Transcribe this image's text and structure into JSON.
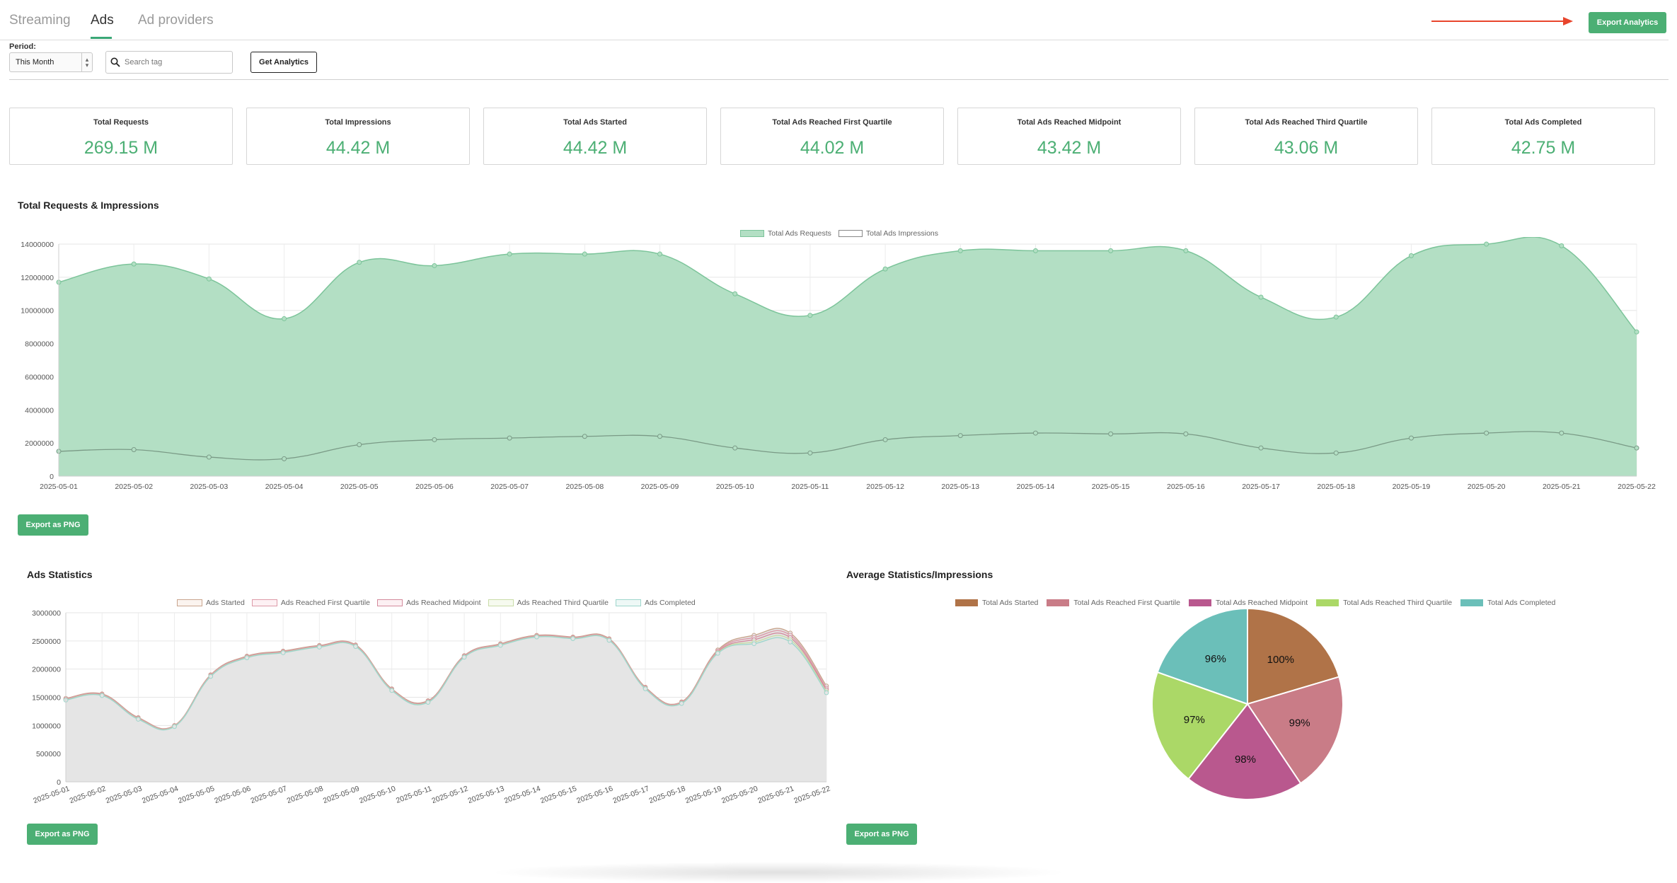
{
  "tabs": [
    {
      "label": "Streaming",
      "active": false
    },
    {
      "label": "Ads",
      "active": true
    },
    {
      "label": "Ad providers",
      "active": false
    }
  ],
  "export_analytics_label": "Export Analytics",
  "filters": {
    "period_label": "Period:",
    "period_value": "This Month",
    "search_placeholder": "Search tag",
    "get_analytics_label": "Get Analytics"
  },
  "stats": [
    {
      "label": "Total Requests",
      "value": "269.15 M"
    },
    {
      "label": "Total Impressions",
      "value": "44.42 M"
    },
    {
      "label": "Total Ads Started",
      "value": "44.42 M"
    },
    {
      "label": "Total Ads Reached First Quartile",
      "value": "44.02 M"
    },
    {
      "label": "Total Ads Reached Midpoint",
      "value": "43.42 M"
    },
    {
      "label": "Total Ads Reached Third Quartile",
      "value": "43.06 M"
    },
    {
      "label": "Total Ads Completed",
      "value": "42.75 M"
    }
  ],
  "colors": {
    "accent": "#4caf74",
    "arrow": "#e8452c"
  },
  "requests_section": {
    "title": "Total Requests & Impressions",
    "export_label": "Export as PNG"
  },
  "ads_section": {
    "title": "Ads Statistics",
    "export_label": "Export as PNG"
  },
  "avg_section": {
    "title": "Average Statistics/Impressions",
    "export_label": "Export as PNG"
  },
  "chart_data": [
    {
      "type": "area",
      "title": "Total Requests & Impressions",
      "x": [
        "2025-05-01",
        "2025-05-02",
        "2025-05-03",
        "2025-05-04",
        "2025-05-05",
        "2025-05-06",
        "2025-05-07",
        "2025-05-08",
        "2025-05-09",
        "2025-05-10",
        "2025-05-11",
        "2025-05-12",
        "2025-05-13",
        "2025-05-14",
        "2025-05-15",
        "2025-05-16",
        "2025-05-17",
        "2025-05-18",
        "2025-05-19",
        "2025-05-20",
        "2025-05-21",
        "2025-05-22"
      ],
      "ylim": [
        0,
        14000000
      ],
      "yticks": [
        0,
        2000000,
        4000000,
        6000000,
        8000000,
        10000000,
        12000000,
        14000000
      ],
      "legend_position": "top",
      "grid": true,
      "series": [
        {
          "name": "Total Ads Requests",
          "color": "#b3dfc4",
          "line": "#7cc49a",
          "values": [
            11700000,
            12800000,
            11900000,
            9500000,
            12900000,
            12700000,
            13400000,
            13400000,
            13400000,
            11000000,
            9700000,
            12500000,
            13600000,
            13600000,
            13600000,
            13600000,
            10800000,
            9600000,
            13300000,
            14000000,
            13900000,
            8700000
          ]
        },
        {
          "name": "Total Ads Impressions",
          "color": "#ffffff",
          "line": "#7a9a86",
          "values": [
            1500000,
            1600000,
            1150000,
            1050000,
            1900000,
            2200000,
            2300000,
            2400000,
            2400000,
            1700000,
            1400000,
            2200000,
            2450000,
            2600000,
            2550000,
            2550000,
            1700000,
            1400000,
            2300000,
            2600000,
            2600000,
            1700000
          ]
        }
      ]
    },
    {
      "type": "area",
      "title": "Ads Statistics",
      "x": [
        "2025-05-01",
        "2025-05-02",
        "2025-05-03",
        "2025-05-04",
        "2025-05-05",
        "2025-05-06",
        "2025-05-07",
        "2025-05-08",
        "2025-05-09",
        "2025-05-10",
        "2025-05-11",
        "2025-05-12",
        "2025-05-13",
        "2025-05-14",
        "2025-05-15",
        "2025-05-16",
        "2025-05-17",
        "2025-05-18",
        "2025-05-19",
        "2025-05-20",
        "2025-05-21",
        "2025-05-22"
      ],
      "ylim": [
        0,
        3000000
      ],
      "yticks": [
        0,
        500000,
        1000000,
        1500000,
        2000000,
        2500000,
        3000000
      ],
      "legend_position": "top",
      "grid": true,
      "series": [
        {
          "name": "Ads Started",
          "color": "#c9a58e",
          "values": [
            1480000,
            1560000,
            1140000,
            1000000,
            1900000,
            2230000,
            2320000,
            2420000,
            2430000,
            1650000,
            1440000,
            2240000,
            2450000,
            2600000,
            2570000,
            2540000,
            1680000,
            1420000,
            2340000,
            2600000,
            2640000,
            1700000
          ]
        },
        {
          "name": "Ads Reached First Quartile",
          "color": "#dd9aa8",
          "values": [
            1470000,
            1550000,
            1130000,
            995000,
            1890000,
            2220000,
            2310000,
            2410000,
            2420000,
            1640000,
            1430000,
            2230000,
            2440000,
            2590000,
            2560000,
            2530000,
            1670000,
            1410000,
            2320000,
            2560000,
            2600000,
            1660000
          ]
        },
        {
          "name": "Ads Reached Midpoint",
          "color": "#d38a9c",
          "values": [
            1460000,
            1540000,
            1120000,
            990000,
            1880000,
            2210000,
            2300000,
            2400000,
            2410000,
            1630000,
            1420000,
            2220000,
            2430000,
            2580000,
            2550000,
            2520000,
            1660000,
            1400000,
            2300000,
            2520000,
            2560000,
            1630000
          ]
        },
        {
          "name": "Ads Reached Third Quartile",
          "color": "#c9dca8",
          "values": [
            1455000,
            1535000,
            1115000,
            985000,
            1875000,
            2205000,
            2295000,
            2395000,
            2405000,
            1625000,
            1415000,
            2215000,
            2425000,
            2575000,
            2545000,
            2515000,
            1655000,
            1395000,
            2290000,
            2480000,
            2520000,
            1600000
          ]
        },
        {
          "name": "Ads Completed",
          "color": "#9ed6cc",
          "values": [
            1450000,
            1530000,
            1110000,
            980000,
            1870000,
            2200000,
            2290000,
            2390000,
            2400000,
            1620000,
            1410000,
            2210000,
            2420000,
            2570000,
            2540000,
            2510000,
            1650000,
            1390000,
            2280000,
            2450000,
            2480000,
            1580000
          ]
        }
      ]
    },
    {
      "type": "pie",
      "title": "Average Statistics/Impressions",
      "legend_position": "top",
      "slices": [
        {
          "label": "Total Ads Started",
          "value": 100,
          "display": "100%",
          "color": "#b07348"
        },
        {
          "label": "Total Ads Reached First Quartile",
          "value": 99,
          "display": "99%",
          "color": "#c97c87"
        },
        {
          "label": "Total Ads Reached Midpoint",
          "value": 98,
          "display": "98%",
          "color": "#b9588e"
        },
        {
          "label": "Total Ads Reached Third Quartile",
          "value": 97,
          "display": "97%",
          "color": "#abd867"
        },
        {
          "label": "Total Ads Completed",
          "value": 96,
          "display": "96%",
          "color": "#6bbfb9"
        }
      ]
    }
  ]
}
